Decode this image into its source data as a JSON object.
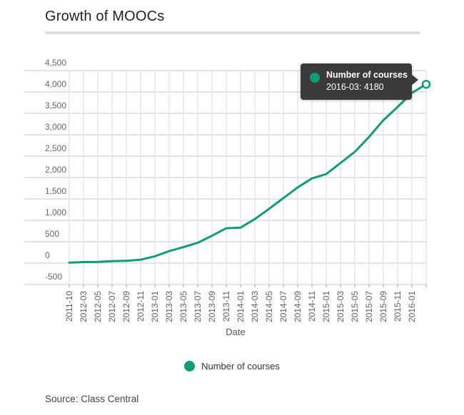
{
  "title": "Growth of MOOCs",
  "source_line": "Source: Class Central",
  "xaxis_title": "Date",
  "legend": {
    "label": "Number of courses"
  },
  "tooltip": {
    "series": "Number of courses",
    "value_line": "2016-03: 4180"
  },
  "colors": {
    "accent": "#0e9c79",
    "tooltip_bg": "#3b3b3b",
    "grid_v": "#d9d9d9",
    "grid_h": "#c9c9c9",
    "tick": "#999999",
    "divider": "#dddddd"
  },
  "chart_data": {
    "type": "line",
    "title": "Growth of MOOCs",
    "xlabel": "Date",
    "ylabel": "",
    "series_name": "Number of courses",
    "categories": [
      "2011-10",
      "2012-03",
      "2012-05",
      "2012-07",
      "2012-09",
      "2012-11",
      "2013-01",
      "2013-03",
      "2013-05",
      "2013-07",
      "2013-09",
      "2013-11",
      "2014-01",
      "2014-03",
      "2014-05",
      "2014-07",
      "2014-09",
      "2014-11",
      "2015-01",
      "2015-03",
      "2015-05",
      "2015-07",
      "2015-09",
      "2015-11",
      "2016-01",
      "2016-03"
    ],
    "values": [
      10,
      25,
      30,
      45,
      55,
      80,
      160,
      280,
      375,
      475,
      640,
      815,
      830,
      1030,
      1270,
      1520,
      1770,
      1980,
      2080,
      2340,
      2600,
      2950,
      3340,
      3650,
      3980,
      4180
    ],
    "last_label_hidden": true,
    "ylim": [
      -500,
      4500
    ],
    "ytick_step": 500,
    "grid": true,
    "legend_position": "bottom",
    "highlighted_point": {
      "category": "2016-03",
      "value": 4180
    }
  }
}
